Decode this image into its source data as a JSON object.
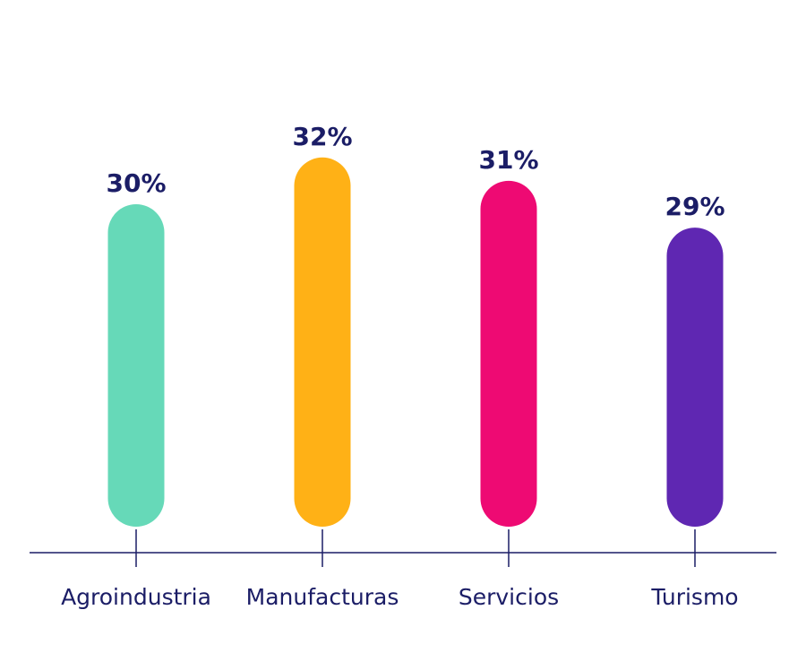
{
  "chart_data": {
    "type": "bar",
    "categories": [
      "Agroindustria",
      "Manufacturas",
      "Servicios",
      "Turismo"
    ],
    "values": [
      30,
      32,
      31,
      29
    ],
    "value_labels": [
      "30%",
      "32%",
      "31%",
      "29%"
    ],
    "bar_colors": [
      "#66d9b8",
      "#ffb116",
      "#ee0a73",
      "#5f27b2"
    ],
    "text_color": "#1b1d66",
    "axis_color": "#1b1d66",
    "title": "",
    "xlabel": "",
    "ylabel": "",
    "grid": false,
    "legend": "none"
  }
}
